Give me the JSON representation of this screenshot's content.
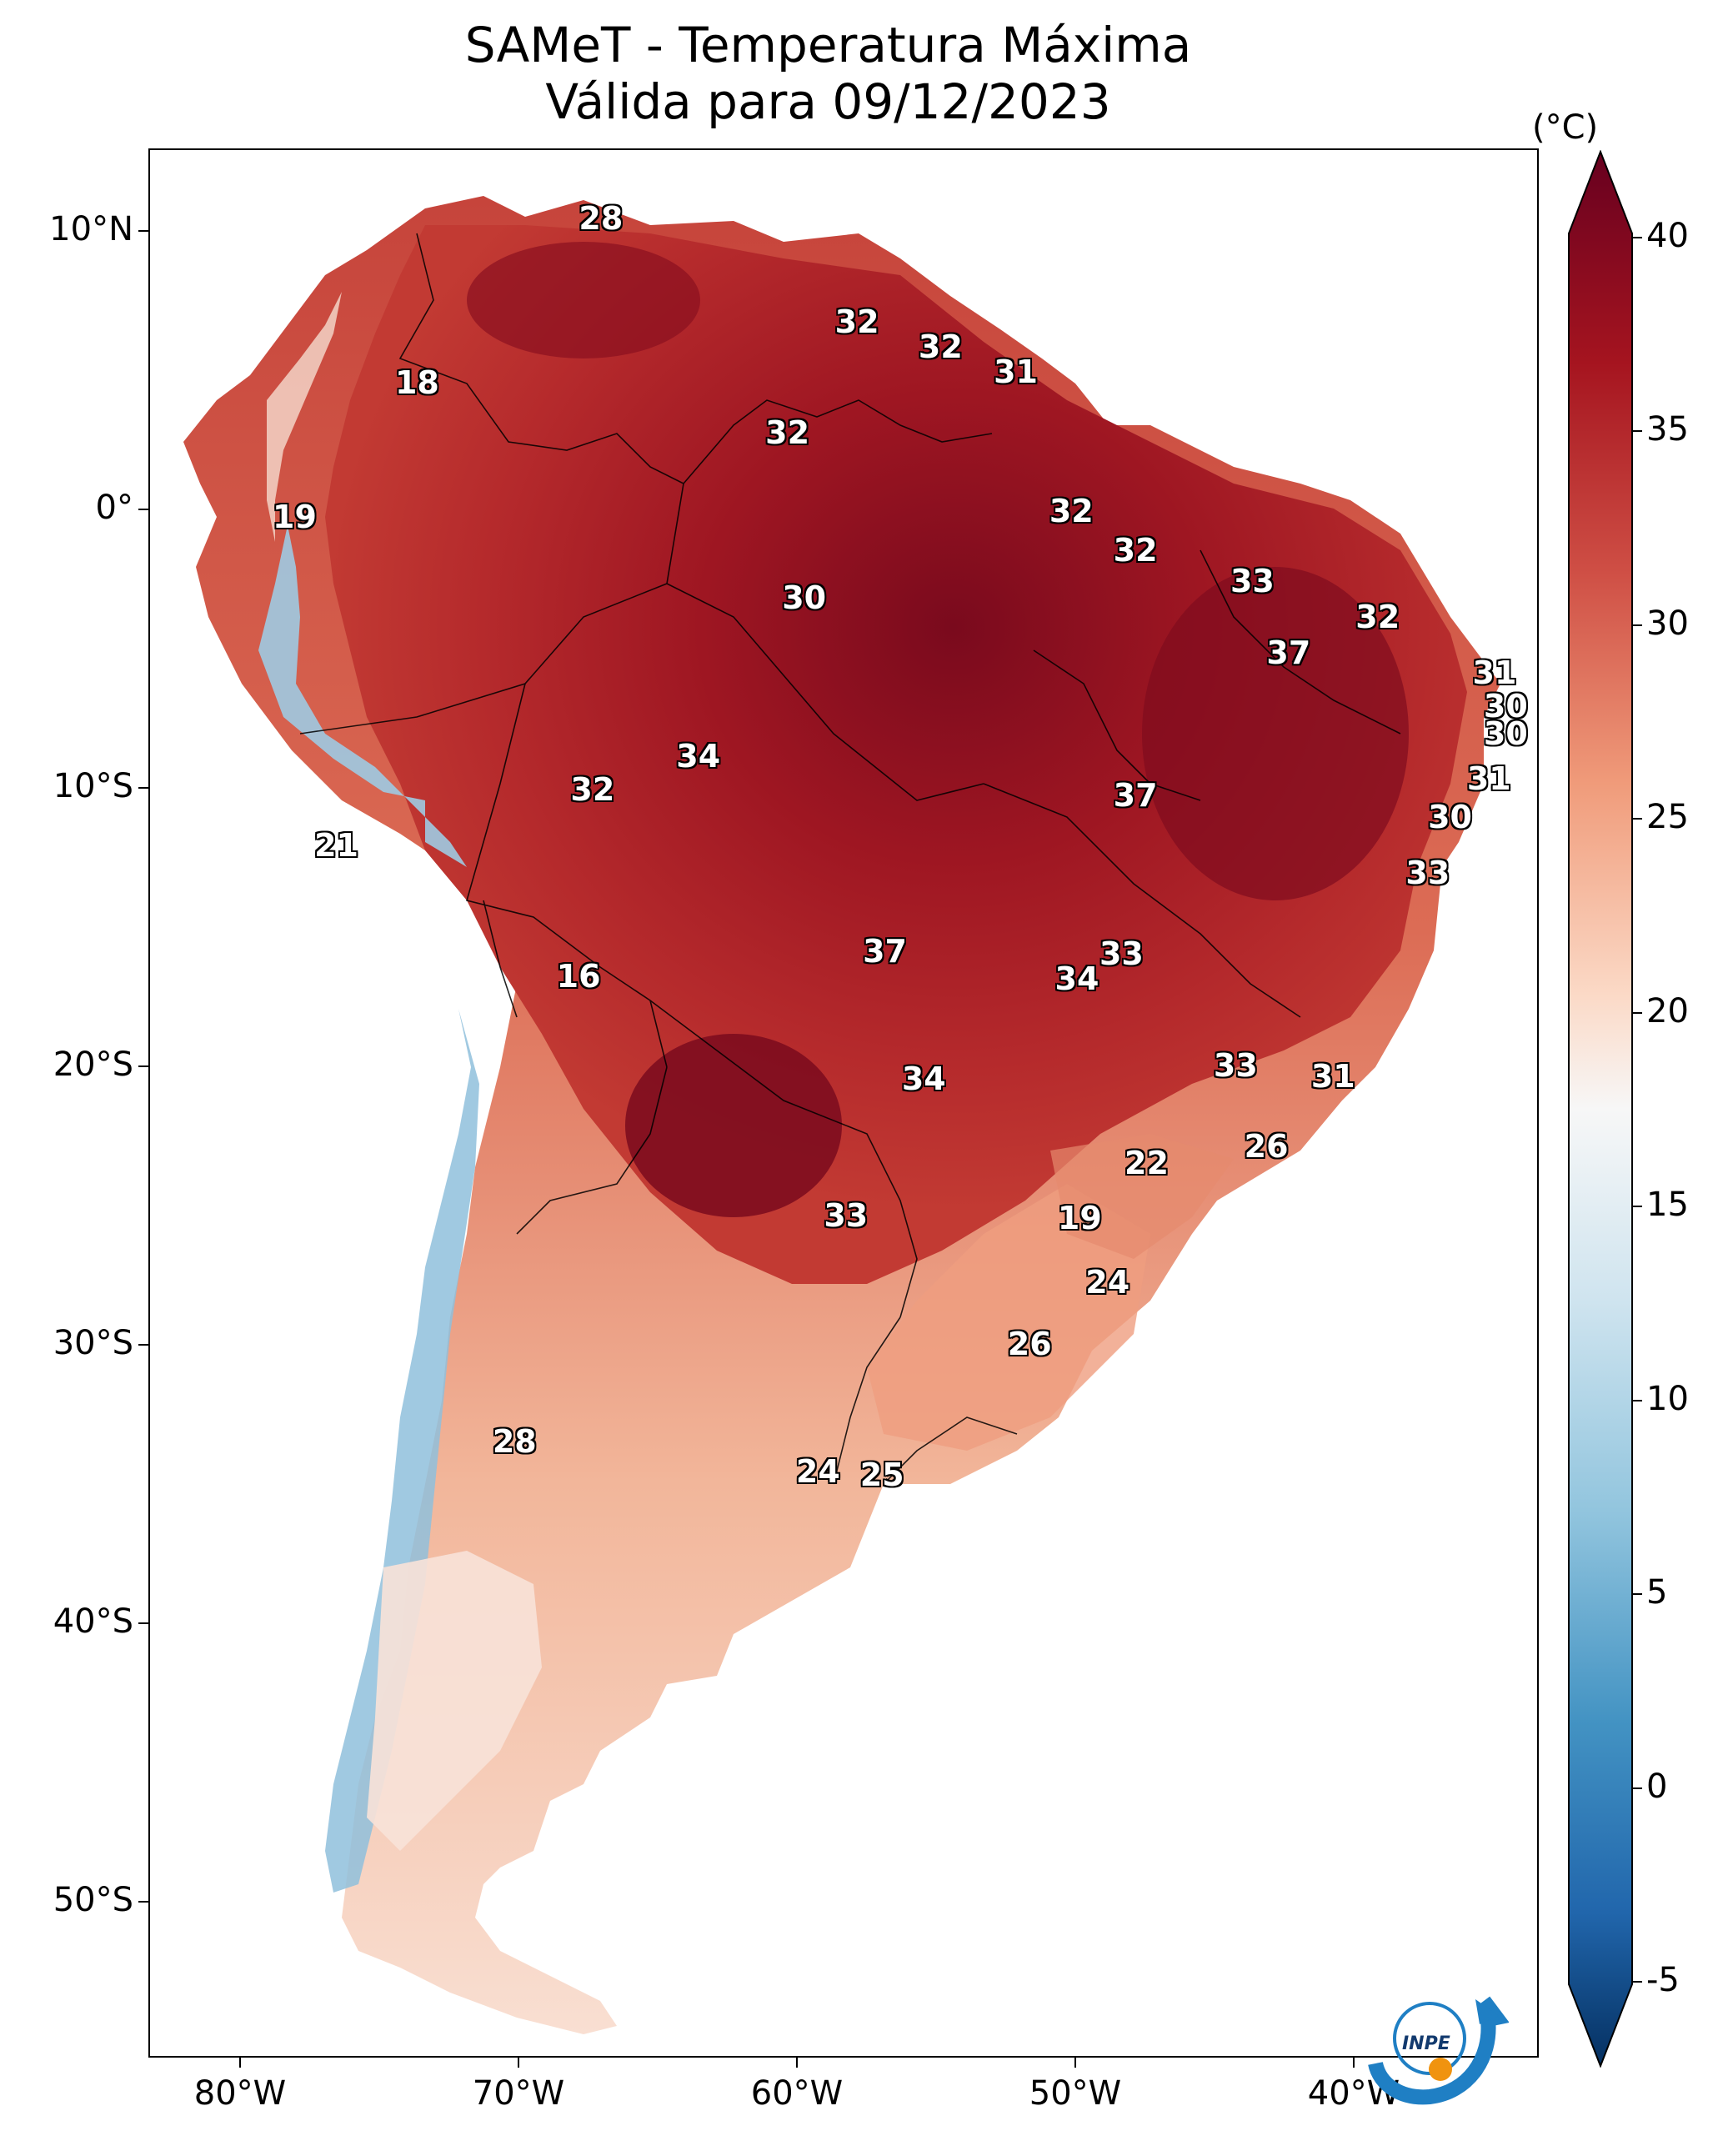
{
  "title": {
    "line1": "SAMeT - Temperatura Máxima",
    "line2": "Válida para 09/12/2023"
  },
  "colors": {
    "very_hot": "#67001f",
    "hot": "#a5141f",
    "warm": "#cf4f45",
    "mild": "#f4a582",
    "neutral": "#f7f7f7",
    "cool": "#92c5de",
    "cold": "#2166ac",
    "very_cold": "#053061"
  },
  "axes": {
    "lat_labels": [
      "10°N",
      "0°",
      "10°S",
      "20°S",
      "30°S",
      "40°S",
      "50°S"
    ],
    "lon_labels": [
      "80°W",
      "70°W",
      "60°W",
      "50°W",
      "40°W"
    ]
  },
  "colorbar": {
    "unit": "(°C)",
    "tick_labels": [
      "40",
      "35",
      "30",
      "25",
      "20",
      "15",
      "10",
      "5",
      "0",
      "-5"
    ],
    "range": [
      -5,
      40
    ]
  },
  "temperature_labels": [
    {
      "text": "28",
      "lon": -67.1,
      "lat": 10.5
    },
    {
      "text": "32",
      "lon": -57.9,
      "lat": 6.8
    },
    {
      "text": "32",
      "lon": -54.9,
      "lat": 5.9
    },
    {
      "text": "31",
      "lon": -52.2,
      "lat": 5.0
    },
    {
      "text": "18",
      "lon": -73.7,
      "lat": 4.6
    },
    {
      "text": "32",
      "lon": -60.4,
      "lat": 2.8
    },
    {
      "text": "19",
      "lon": -78.1,
      "lat": -0.2
    },
    {
      "text": "32",
      "lon": -50.2,
      "lat": 0.0
    },
    {
      "text": "32",
      "lon": -47.9,
      "lat": -1.4
    },
    {
      "text": "33",
      "lon": -43.7,
      "lat": -2.5
    },
    {
      "text": "30",
      "lon": -59.8,
      "lat": -3.1
    },
    {
      "text": "32",
      "lon": -39.2,
      "lat": -3.8
    },
    {
      "text": "37",
      "lon": -42.4,
      "lat": -5.1
    },
    {
      "text": "31",
      "lon": -35.0,
      "lat": -5.8
    },
    {
      "text": "30",
      "lon": -34.6,
      "lat": -7.0
    },
    {
      "text": "30",
      "lon": -34.6,
      "lat": -8.0
    },
    {
      "text": "34",
      "lon": -63.6,
      "lat": -8.8
    },
    {
      "text": "31",
      "lon": -35.2,
      "lat": -9.6
    },
    {
      "text": "32",
      "lon": -67.4,
      "lat": -10.0
    },
    {
      "text": "37",
      "lon": -47.9,
      "lat": -10.2
    },
    {
      "text": "30",
      "lon": -36.6,
      "lat": -11.0
    },
    {
      "text": "21",
      "lon": -76.6,
      "lat": -12.0
    },
    {
      "text": "33",
      "lon": -37.4,
      "lat": -13.0
    },
    {
      "text": "37",
      "lon": -56.9,
      "lat": -15.8
    },
    {
      "text": "33",
      "lon": -48.4,
      "lat": -15.9
    },
    {
      "text": "16",
      "lon": -67.9,
      "lat": -16.7
    },
    {
      "text": "34",
      "lon": -50.0,
      "lat": -16.8
    },
    {
      "text": "33",
      "lon": -44.3,
      "lat": -19.9
    },
    {
      "text": "31",
      "lon": -40.8,
      "lat": -20.3
    },
    {
      "text": "34",
      "lon": -55.5,
      "lat": -20.4
    },
    {
      "text": "26",
      "lon": -43.2,
      "lat": -22.8
    },
    {
      "text": "22",
      "lon": -47.5,
      "lat": -23.4
    },
    {
      "text": "33",
      "lon": -58.3,
      "lat": -25.3
    },
    {
      "text": "19",
      "lon": -49.9,
      "lat": -25.4
    },
    {
      "text": "24",
      "lon": -48.9,
      "lat": -27.7
    },
    {
      "text": "26",
      "lon": -51.7,
      "lat": -29.9
    },
    {
      "text": "28",
      "lon": -70.2,
      "lat": -33.4
    },
    {
      "text": "24",
      "lon": -59.3,
      "lat": -34.5
    },
    {
      "text": "25",
      "lon": -57.0,
      "lat": -34.6
    }
  ],
  "logo": {
    "text": "INPE"
  }
}
